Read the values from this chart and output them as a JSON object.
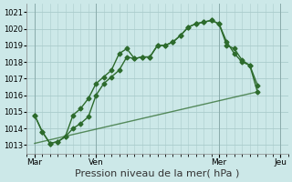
{
  "title": "Pression niveau de la mer( hPa )",
  "bg_color": "#cce8e8",
  "grid_color": "#aacccc",
  "line_color": "#2d6b2d",
  "ylim": [
    1012.5,
    1021.5
  ],
  "yticks": [
    1013,
    1014,
    1015,
    1016,
    1017,
    1018,
    1019,
    1020,
    1021
  ],
  "xlim": [
    -3,
    99
  ],
  "xlabel_ticks": [
    0,
    24,
    72,
    96
  ],
  "xlabel_labels": [
    "Mar",
    "Ven",
    "Mer",
    "Jeu"
  ],
  "vlines_x": [
    0,
    24,
    72,
    96
  ],
  "series1_x": [
    0,
    3,
    6,
    9,
    12,
    15,
    18,
    21,
    24,
    27,
    30,
    33,
    36,
    39,
    42,
    45,
    48,
    51,
    54,
    57,
    60,
    63,
    66,
    69,
    72,
    75,
    78,
    81,
    84,
    87
  ],
  "series1_y": [
    1014.8,
    1013.8,
    1013.1,
    1013.2,
    1013.5,
    1014.8,
    1015.2,
    1015.8,
    1016.7,
    1017.1,
    1017.5,
    1018.5,
    1018.8,
    1018.2,
    1018.3,
    1018.3,
    1019.0,
    1019.0,
    1019.2,
    1019.6,
    1020.1,
    1020.3,
    1020.4,
    1020.5,
    1020.3,
    1019.0,
    1018.8,
    1018.1,
    1017.8,
    1016.6
  ],
  "series2_x": [
    0,
    3,
    6,
    9,
    12,
    15,
    18,
    21,
    24,
    27,
    30,
    33,
    36,
    39,
    42,
    45,
    48,
    51,
    54,
    57,
    60,
    63,
    66,
    69,
    72,
    75,
    78,
    81,
    84,
    87
  ],
  "series2_y": [
    1014.8,
    1013.8,
    1013.1,
    1013.2,
    1013.5,
    1014.0,
    1014.3,
    1014.7,
    1016.0,
    1016.7,
    1017.1,
    1017.5,
    1018.3,
    1018.2,
    1018.3,
    1018.3,
    1019.0,
    1019.0,
    1019.2,
    1019.6,
    1020.1,
    1020.3,
    1020.4,
    1020.5,
    1020.3,
    1019.2,
    1018.5,
    1018.0,
    1017.8,
    1016.2
  ],
  "series3_x": [
    0,
    87
  ],
  "series3_y": [
    1013.1,
    1016.2
  ],
  "marker": "D",
  "marker_size": 2.5,
  "line_width": 1.0,
  "fontsize_label": 8,
  "fontsize_tick": 6
}
